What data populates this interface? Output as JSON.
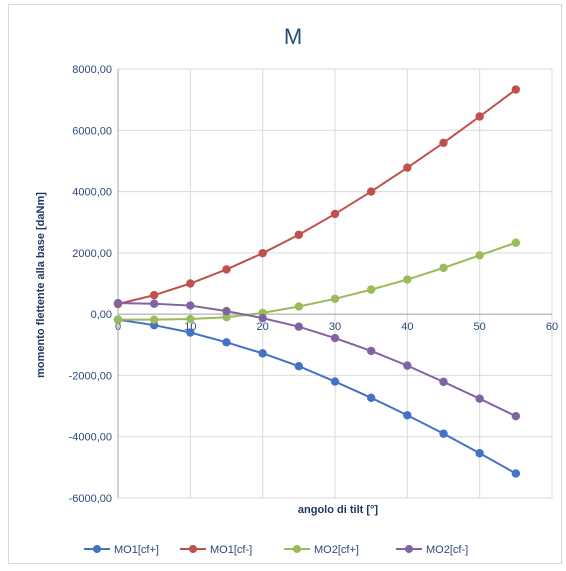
{
  "chart_data": {
    "type": "line",
    "title": "M",
    "xlabel": "angolo di tilt [°]",
    "ylabel": "momento flettente alla base [daNm]",
    "xlim": [
      0,
      60
    ],
    "ylim": [
      -6000,
      8000
    ],
    "xticks": [
      0,
      10,
      20,
      30,
      40,
      50,
      60
    ],
    "xtick_labels": [
      "0",
      "10",
      "20",
      "30",
      "40",
      "50",
      "60"
    ],
    "yticks": [
      -6000,
      -4000,
      -2000,
      0,
      2000,
      4000,
      6000,
      8000
    ],
    "ytick_labels": [
      "-6000,00",
      "-4000,00",
      "-2000,00",
      "0,00",
      "2000,00",
      "4000,00",
      "6000,00",
      "8000,00"
    ],
    "grid": true,
    "legend_position": "bottom",
    "x": [
      0,
      5,
      10,
      15,
      20,
      25,
      30,
      35,
      40,
      45,
      50,
      55
    ],
    "series": [
      {
        "name": "MO1[cf+]",
        "color": "#4472c4",
        "values": [
          -180,
          -360,
          -600,
          -920,
          -1280,
          -1700,
          -2200,
          -2730,
          -3300,
          -3900,
          -4540,
          -5200
        ]
      },
      {
        "name": "MO1[cf-]",
        "color": "#c0504d",
        "values": [
          330,
          620,
          1000,
          1460,
          1990,
          2590,
          3270,
          4000,
          4780,
          5590,
          6450,
          7330
        ]
      },
      {
        "name": "MO2[cf+]",
        "color": "#9bbb59",
        "values": [
          -180,
          -180,
          -160,
          -100,
          40,
          250,
          500,
          800,
          1130,
          1510,
          1920,
          2330
        ]
      },
      {
        "name": "MO2[cf-]",
        "color": "#8064a2",
        "values": [
          360,
          340,
          280,
          100,
          -130,
          -410,
          -780,
          -1200,
          -1680,
          -2210,
          -2760,
          -3330
        ]
      }
    ]
  }
}
